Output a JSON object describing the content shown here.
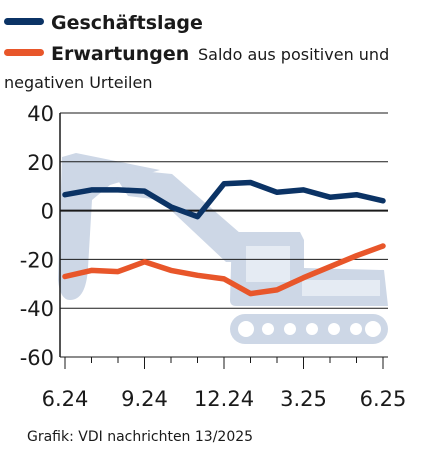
{
  "legend": {
    "items": [
      {
        "label": "Geschäftslage",
        "note": "",
        "color": "#0b3365"
      },
      {
        "label": "Erwartungen",
        "note": "Saldo aus positiven und",
        "color": "#e8562a"
      }
    ],
    "note_line2": "negativen Urteilen"
  },
  "source": "Grafik: VDI nachrichten 13/2025",
  "chart_data": {
    "type": "line",
    "title": "",
    "xlabel": "",
    "ylabel": "",
    "ylim": [
      -60,
      40
    ],
    "y_ticks": [
      "40",
      "20",
      "0",
      "-20",
      "-40",
      "-60"
    ],
    "y_tick_values": [
      40,
      20,
      0,
      -20,
      -40,
      -60
    ],
    "x_ticks": [
      "6.24",
      "9.24",
      "12.24",
      "3.25",
      "6.25"
    ],
    "x_tick_index": [
      0,
      3,
      6,
      9,
      12
    ],
    "x": [
      "6.24",
      "7.24",
      "8.24",
      "9.24",
      "10.24",
      "11.24",
      "12.24",
      "1.25",
      "2.25",
      "3.25",
      "4.25",
      "5.25",
      "6.25"
    ],
    "grid": true,
    "series": [
      {
        "name": "Geschäftslage",
        "color": "#0b3365",
        "values": [
          6.5,
          8.5,
          8.5,
          8,
          1.5,
          -2.5,
          11,
          11.5,
          7.5,
          8.5,
          5.5,
          6.5,
          4
        ]
      },
      {
        "name": "Erwartungen",
        "color": "#e8562a",
        "values": [
          -27,
          -24.5,
          -25,
          -21,
          -24.5,
          -26.5,
          -28,
          -34,
          -32.5,
          -27.5,
          -23,
          -18.5,
          -14.5
        ]
      }
    ],
    "background_illustration": "excavator-icon",
    "illustration_color": "#cdd7e6"
  }
}
